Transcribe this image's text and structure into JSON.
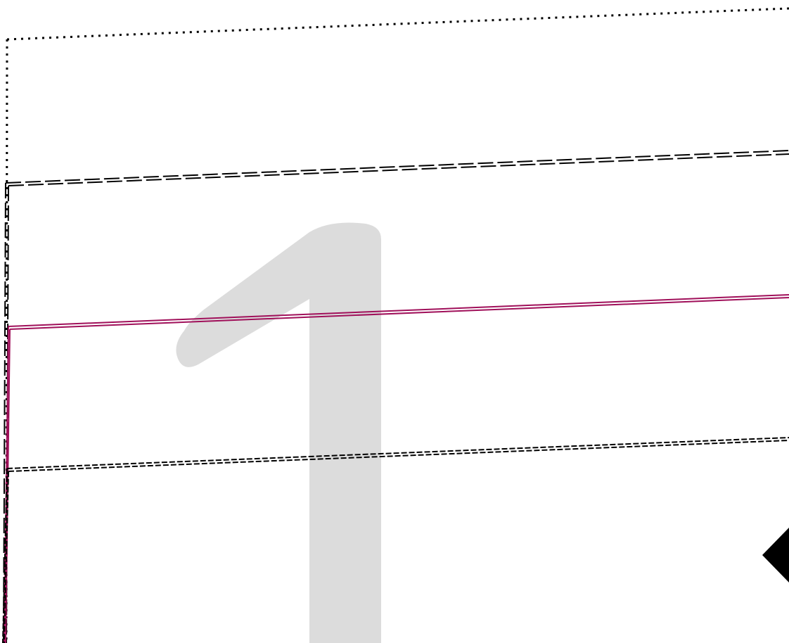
{
  "background_glyph": {
    "text": "1",
    "color": "#dcdcdc"
  },
  "colors": {
    "stroke": "#000000",
    "accent": "#a0105a",
    "background": "#ffffff"
  },
  "frames": [
    {
      "name": "outer-dotted-frame",
      "style": "dotted"
    },
    {
      "name": "long-dash-frame",
      "style": "long-dashed"
    },
    {
      "name": "magenta-double-frame",
      "style": "double"
    },
    {
      "name": "short-dash-frame",
      "style": "short-dashed"
    }
  ],
  "marker": {
    "shape": "diamond",
    "color": "#000000"
  }
}
